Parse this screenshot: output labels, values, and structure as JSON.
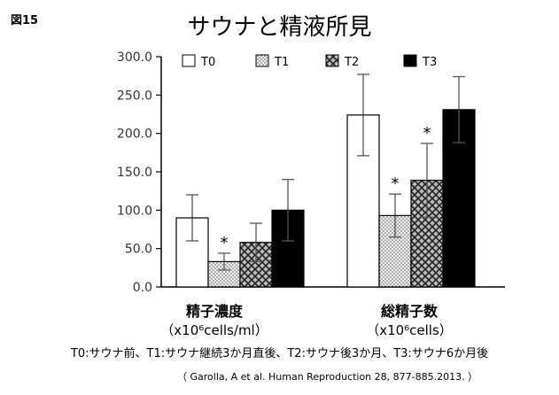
{
  "figure_label": "図15",
  "note": "T0:サウナ前、T1:サウナ継続3か月直後、T2:サウナ後3か月、T3:サウナ6か月後",
  "citation": "（ Garolla, A et al. Human Reproduction 28, 877-885.2013. ）",
  "colors": {
    "T0": "#ffffff",
    "T1": "#e8e8e8",
    "T2": "#777777",
    "T3": "#000000",
    "axis": "#000000"
  },
  "chart_data": {
    "type": "bar",
    "title": "サウナと精液所見",
    "categories": [
      "精子濃度",
      "総精子数"
    ],
    "category_units": [
      "（x10⁶cells/ml）",
      "（x10⁶cells）"
    ],
    "ylim": [
      0,
      300
    ],
    "yticks": [
      0,
      50,
      100,
      150,
      200,
      250,
      300
    ],
    "ytick_labels": [
      "0.0",
      "50.0",
      "100.0",
      "150.0",
      "200.0",
      "250.0",
      "300.0"
    ],
    "legend_position": "top",
    "series": [
      {
        "name": "T0",
        "pattern": "plain",
        "values": [
          90,
          224
        ],
        "errors": [
          30,
          53
        ],
        "significant": [
          false,
          false
        ]
      },
      {
        "name": "T1",
        "pattern": "dots",
        "values": [
          33,
          93
        ],
        "errors": [
          11,
          28
        ],
        "significant": [
          true,
          true
        ]
      },
      {
        "name": "T2",
        "pattern": "cross",
        "values": [
          58,
          139
        ],
        "errors": [
          25,
          48
        ],
        "significant": [
          false,
          true
        ]
      },
      {
        "name": "T3",
        "pattern": "solid",
        "values": [
          100,
          231
        ],
        "errors": [
          40,
          43
        ],
        "significant": [
          false,
          false
        ]
      }
    ],
    "significance_marker": "*"
  }
}
